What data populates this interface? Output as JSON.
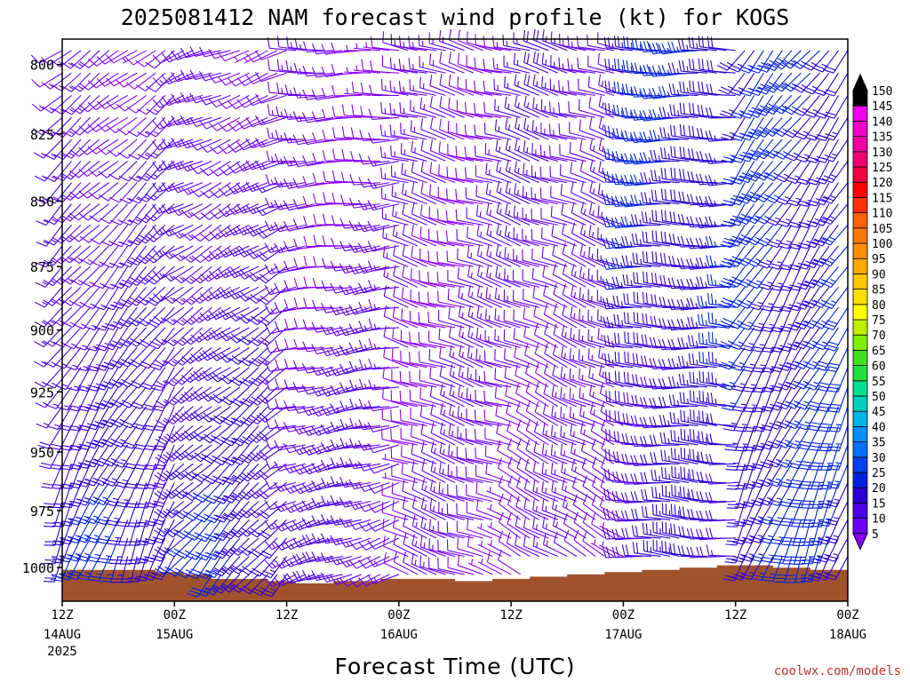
{
  "title": "2025081412 NAM forecast wind profile (kt) for KOGS",
  "credit": "coolwx.com/models",
  "credit_color": "#c83030",
  "ground_color": "#a0522d",
  "chart_data": {
    "type": "wind-barb time-height",
    "title": "2025081412 NAM forecast wind profile (kt) for KOGS",
    "xlabel": "Forecast Time (UTC)",
    "ylabel": "",
    "x_range_hours": [
      0,
      84
    ],
    "y_range_hpa": [
      1015,
      791
    ],
    "y_ticks": [
      "800",
      "825",
      "850",
      "875",
      "900",
      "925",
      "950",
      "975",
      "1000"
    ],
    "x_ticks": [
      {
        "label": "12Z",
        "sub": "14AUG",
        "sub2": "2025",
        "hour": 0
      },
      {
        "label": "00Z",
        "sub": "15AUG",
        "sub2": "",
        "hour": 12
      },
      {
        "label": "12Z",
        "sub": "",
        "sub2": "",
        "hour": 24
      },
      {
        "label": "00Z",
        "sub": "16AUG",
        "sub2": "",
        "hour": 36
      },
      {
        "label": "12Z",
        "sub": "",
        "sub2": "",
        "hour": 48
      },
      {
        "label": "00Z",
        "sub": "17AUG",
        "sub2": "",
        "hour": 60
      },
      {
        "label": "12Z",
        "sub": "",
        "sub2": "",
        "hour": 72
      },
      {
        "label": "00Z",
        "sub": "18AUG",
        "sub2": "",
        "hour": 84
      }
    ],
    "colorbar": {
      "levels": [
        "5",
        "10",
        "15",
        "20",
        "25",
        "30",
        "35",
        "40",
        "45",
        "50",
        "55",
        "60",
        "65",
        "70",
        "75",
        "80",
        "85",
        "90",
        "95",
        "100",
        "105",
        "110",
        "115",
        "120",
        "125",
        "130",
        "135",
        "140",
        "145",
        "150"
      ],
      "colors": [
        "#8c00ff",
        "#6a00f5",
        "#4b00e6",
        "#2a00d6",
        "#0020e0",
        "#0040f0",
        "#0070ff",
        "#0090ff",
        "#00b4e8",
        "#00d0c0",
        "#00e090",
        "#20e040",
        "#40e020",
        "#80f000",
        "#c0f000",
        "#ffff00",
        "#ffe000",
        "#ffc800",
        "#ffa800",
        "#ff9000",
        "#ff7800",
        "#ff6000",
        "#ff3000",
        "#ff0000",
        "#f00040",
        "#f00070",
        "#f000a0",
        "#f000c8",
        "#f000f0",
        "#000000"
      ]
    },
    "ground_surface_hpa": [
      {
        "hour": 0,
        "p": 1001
      },
      {
        "hour": 10,
        "p": 1002
      },
      {
        "hour": 13,
        "p": 1003
      },
      {
        "hour": 16,
        "p": 1005
      },
      {
        "hour": 22,
        "p": 1006
      },
      {
        "hour": 25,
        "p": 1007
      },
      {
        "hour": 29,
        "p": 1006
      },
      {
        "hour": 34,
        "p": 1005
      },
      {
        "hour": 38,
        "p": 1005
      },
      {
        "hour": 42,
        "p": 1006
      },
      {
        "hour": 46,
        "p": 1005
      },
      {
        "hour": 50,
        "p": 1004
      },
      {
        "hour": 54,
        "p": 1003
      },
      {
        "hour": 58,
        "p": 1002
      },
      {
        "hour": 62,
        "p": 1001
      },
      {
        "hour": 66,
        "p": 1000
      },
      {
        "hour": 70,
        "p": 999
      },
      {
        "hour": 74,
        "p": 999
      },
      {
        "hour": 76,
        "p": 1000
      },
      {
        "hour": 80,
        "p": 1001
      },
      {
        "hour": 84,
        "p": 1002
      }
    ],
    "wind_regimes": [
      {
        "hours": [
          0,
          12
        ],
        "dir_low": 200,
        "dir_high": 235,
        "spd_low": 25,
        "spd_high": 10
      },
      {
        "hours": [
          12,
          24
        ],
        "dir_low": 220,
        "dir_high": 250,
        "spd_low": 25,
        "spd_high": 10
      },
      {
        "hours": [
          24,
          36
        ],
        "dir_low": 250,
        "dir_high": 270,
        "spd_low": 15,
        "spd_high": 10
      },
      {
        "hours": [
          36,
          48
        ],
        "dir_low": 290,
        "dir_high": 285,
        "spd_low": 10,
        "spd_high": 12
      },
      {
        "hours": [
          48,
          60
        ],
        "dir_low": 300,
        "dir_high": 285,
        "spd_low": 10,
        "spd_high": 15
      },
      {
        "hours": [
          60,
          72
        ],
        "dir_low": 275,
        "dir_high": 270,
        "spd_low": 20,
        "spd_high": 25
      },
      {
        "hours": [
          72,
          84
        ],
        "dir_low": 200,
        "dir_high": 220,
        "spd_low": 25,
        "spd_high": 25
      }
    ]
  }
}
